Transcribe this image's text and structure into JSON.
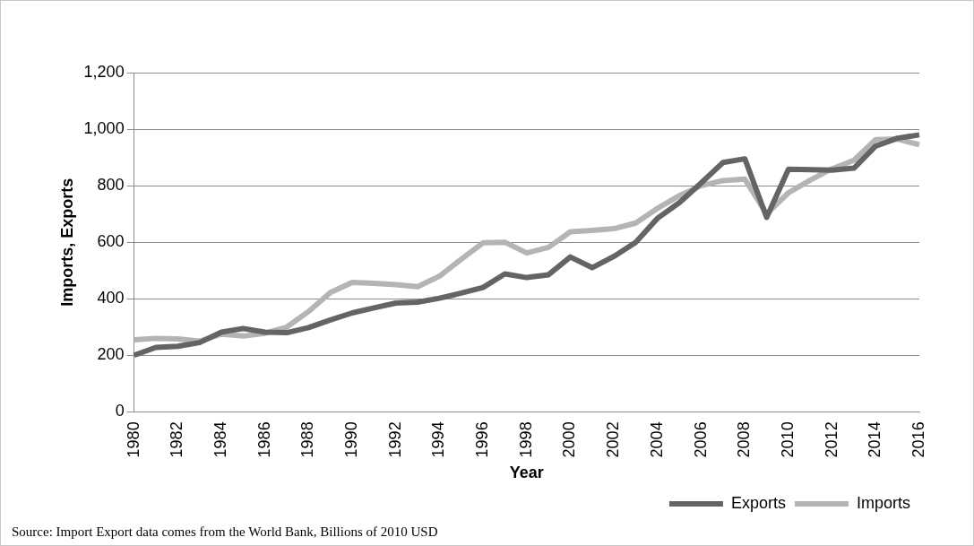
{
  "chart_data": {
    "type": "line",
    "xlabel": "Year",
    "ylabel": "Imports, Exports",
    "categories": [
      "1980",
      null,
      "1982",
      null,
      "1984",
      null,
      "1986",
      null,
      "1988",
      null,
      "1990",
      null,
      "1992",
      null,
      "1994",
      null,
      "1996",
      null,
      "1998",
      null,
      "2000",
      null,
      "2002",
      null,
      "2004",
      null,
      "2006",
      null,
      "2008",
      null,
      "2010",
      null,
      "2012",
      null,
      "2014",
      null,
      "2016"
    ],
    "series": [
      {
        "name": "Exports",
        "color": "#646464",
        "values": [
          200,
          228,
          232,
          245,
          282,
          295,
          282,
          280,
          298,
          325,
          350,
          368,
          385,
          388,
          402,
          420,
          440,
          488,
          475,
          485,
          548,
          510,
          550,
          600,
          685,
          740,
          810,
          882,
          895,
          688,
          858,
          857,
          855,
          862,
          940,
          968,
          980
        ]
      },
      {
        "name": "Imports",
        "color": "#b4b4b4",
        "values": [
          255,
          260,
          258,
          250,
          275,
          268,
          278,
          300,
          355,
          422,
          458,
          455,
          450,
          443,
          480,
          540,
          598,
          600,
          562,
          582,
          637,
          642,
          648,
          668,
          720,
          765,
          800,
          818,
          823,
          700,
          775,
          820,
          860,
          890,
          963,
          965,
          945
        ]
      }
    ],
    "ylim": [
      0,
      1200
    ],
    "yticks": [
      {
        "value": 0,
        "label": "0"
      },
      {
        "value": 200,
        "label": "200"
      },
      {
        "value": 400,
        "label": "400"
      },
      {
        "value": 600,
        "label": "600"
      },
      {
        "value": 800,
        "label": "800"
      },
      {
        "value": 1000,
        "label": "1,000"
      },
      {
        "value": 1200,
        "label": "1,200"
      }
    ],
    "grid": "y",
    "legend": "bottom right",
    "marker": "none",
    "line_style": "solid",
    "annotations": [
      "Source: Import Export data comes from the World Bank, Billions of 2010 USD"
    ]
  }
}
